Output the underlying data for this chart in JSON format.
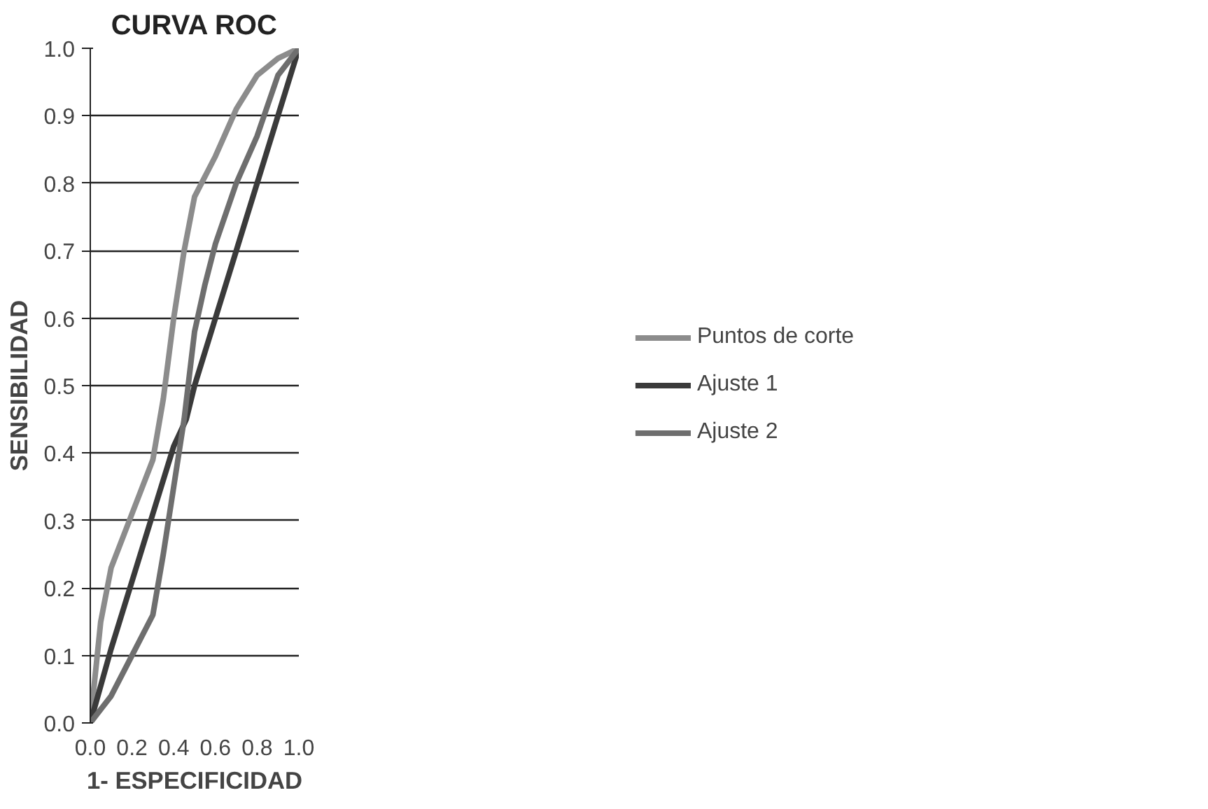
{
  "chart_data": {
    "type": "line",
    "title": "CURVA ROC",
    "xlabel": "1- ESPECIFICIDAD",
    "ylabel": "SENSIBILIDAD",
    "xlim": [
      0,
      1
    ],
    "ylim": [
      0,
      1
    ],
    "xticks": [
      {
        "value": 0,
        "label": "0.0"
      },
      {
        "value": 0.2,
        "label": "0.2"
      },
      {
        "value": 0.4,
        "label": "0.4"
      },
      {
        "value": 0.6,
        "label": "0.6"
      },
      {
        "value": 0.8,
        "label": "0.8"
      },
      {
        "value": 1,
        "label": "1.0"
      }
    ],
    "yticks": [
      {
        "value": 0,
        "label": "0.0"
      },
      0.1,
      0.2,
      0.3,
      0.4,
      0.5,
      0.6,
      0.7,
      0.8,
      0.9,
      {
        "value": 1,
        "label": "1.0"
      }
    ],
    "grid": "y",
    "legend": "right",
    "marker": "none",
    "line_style": "solid",
    "series": [
      {
        "name": "Puntos de corte",
        "color": "#8c8c8c",
        "x": [
          0,
          0.05,
          0.1,
          0.2,
          0.3,
          0.35,
          0.4,
          0.45,
          0.5,
          0.6,
          0.7,
          0.8,
          0.9,
          1
        ],
        "values": [
          0,
          0.15,
          0.23,
          0.31,
          0.39,
          0.48,
          0.6,
          0.7,
          0.78,
          0.84,
          0.91,
          0.96,
          0.985,
          1
        ]
      },
      {
        "name": "Ajuste 1",
        "color": "#3a3a3a",
        "x": [
          0,
          0.1,
          0.2,
          0.3,
          0.4,
          0.46,
          0.5,
          0.6,
          0.7,
          0.8,
          0.9,
          1
        ],
        "values": [
          0,
          0.11,
          0.21,
          0.31,
          0.41,
          0.45,
          0.5,
          0.6,
          0.7,
          0.8,
          0.9,
          1
        ]
      },
      {
        "name": "Ajuste 2",
        "color": "#6e6e6e",
        "x": [
          0,
          0.1,
          0.2,
          0.3,
          0.35,
          0.4,
          0.45,
          0.5,
          0.55,
          0.6,
          0.7,
          0.8,
          0.9,
          1
        ],
        "values": [
          0,
          0.04,
          0.1,
          0.16,
          0.25,
          0.35,
          0.45,
          0.58,
          0.65,
          0.71,
          0.8,
          0.87,
          0.96,
          1
        ]
      }
    ]
  }
}
